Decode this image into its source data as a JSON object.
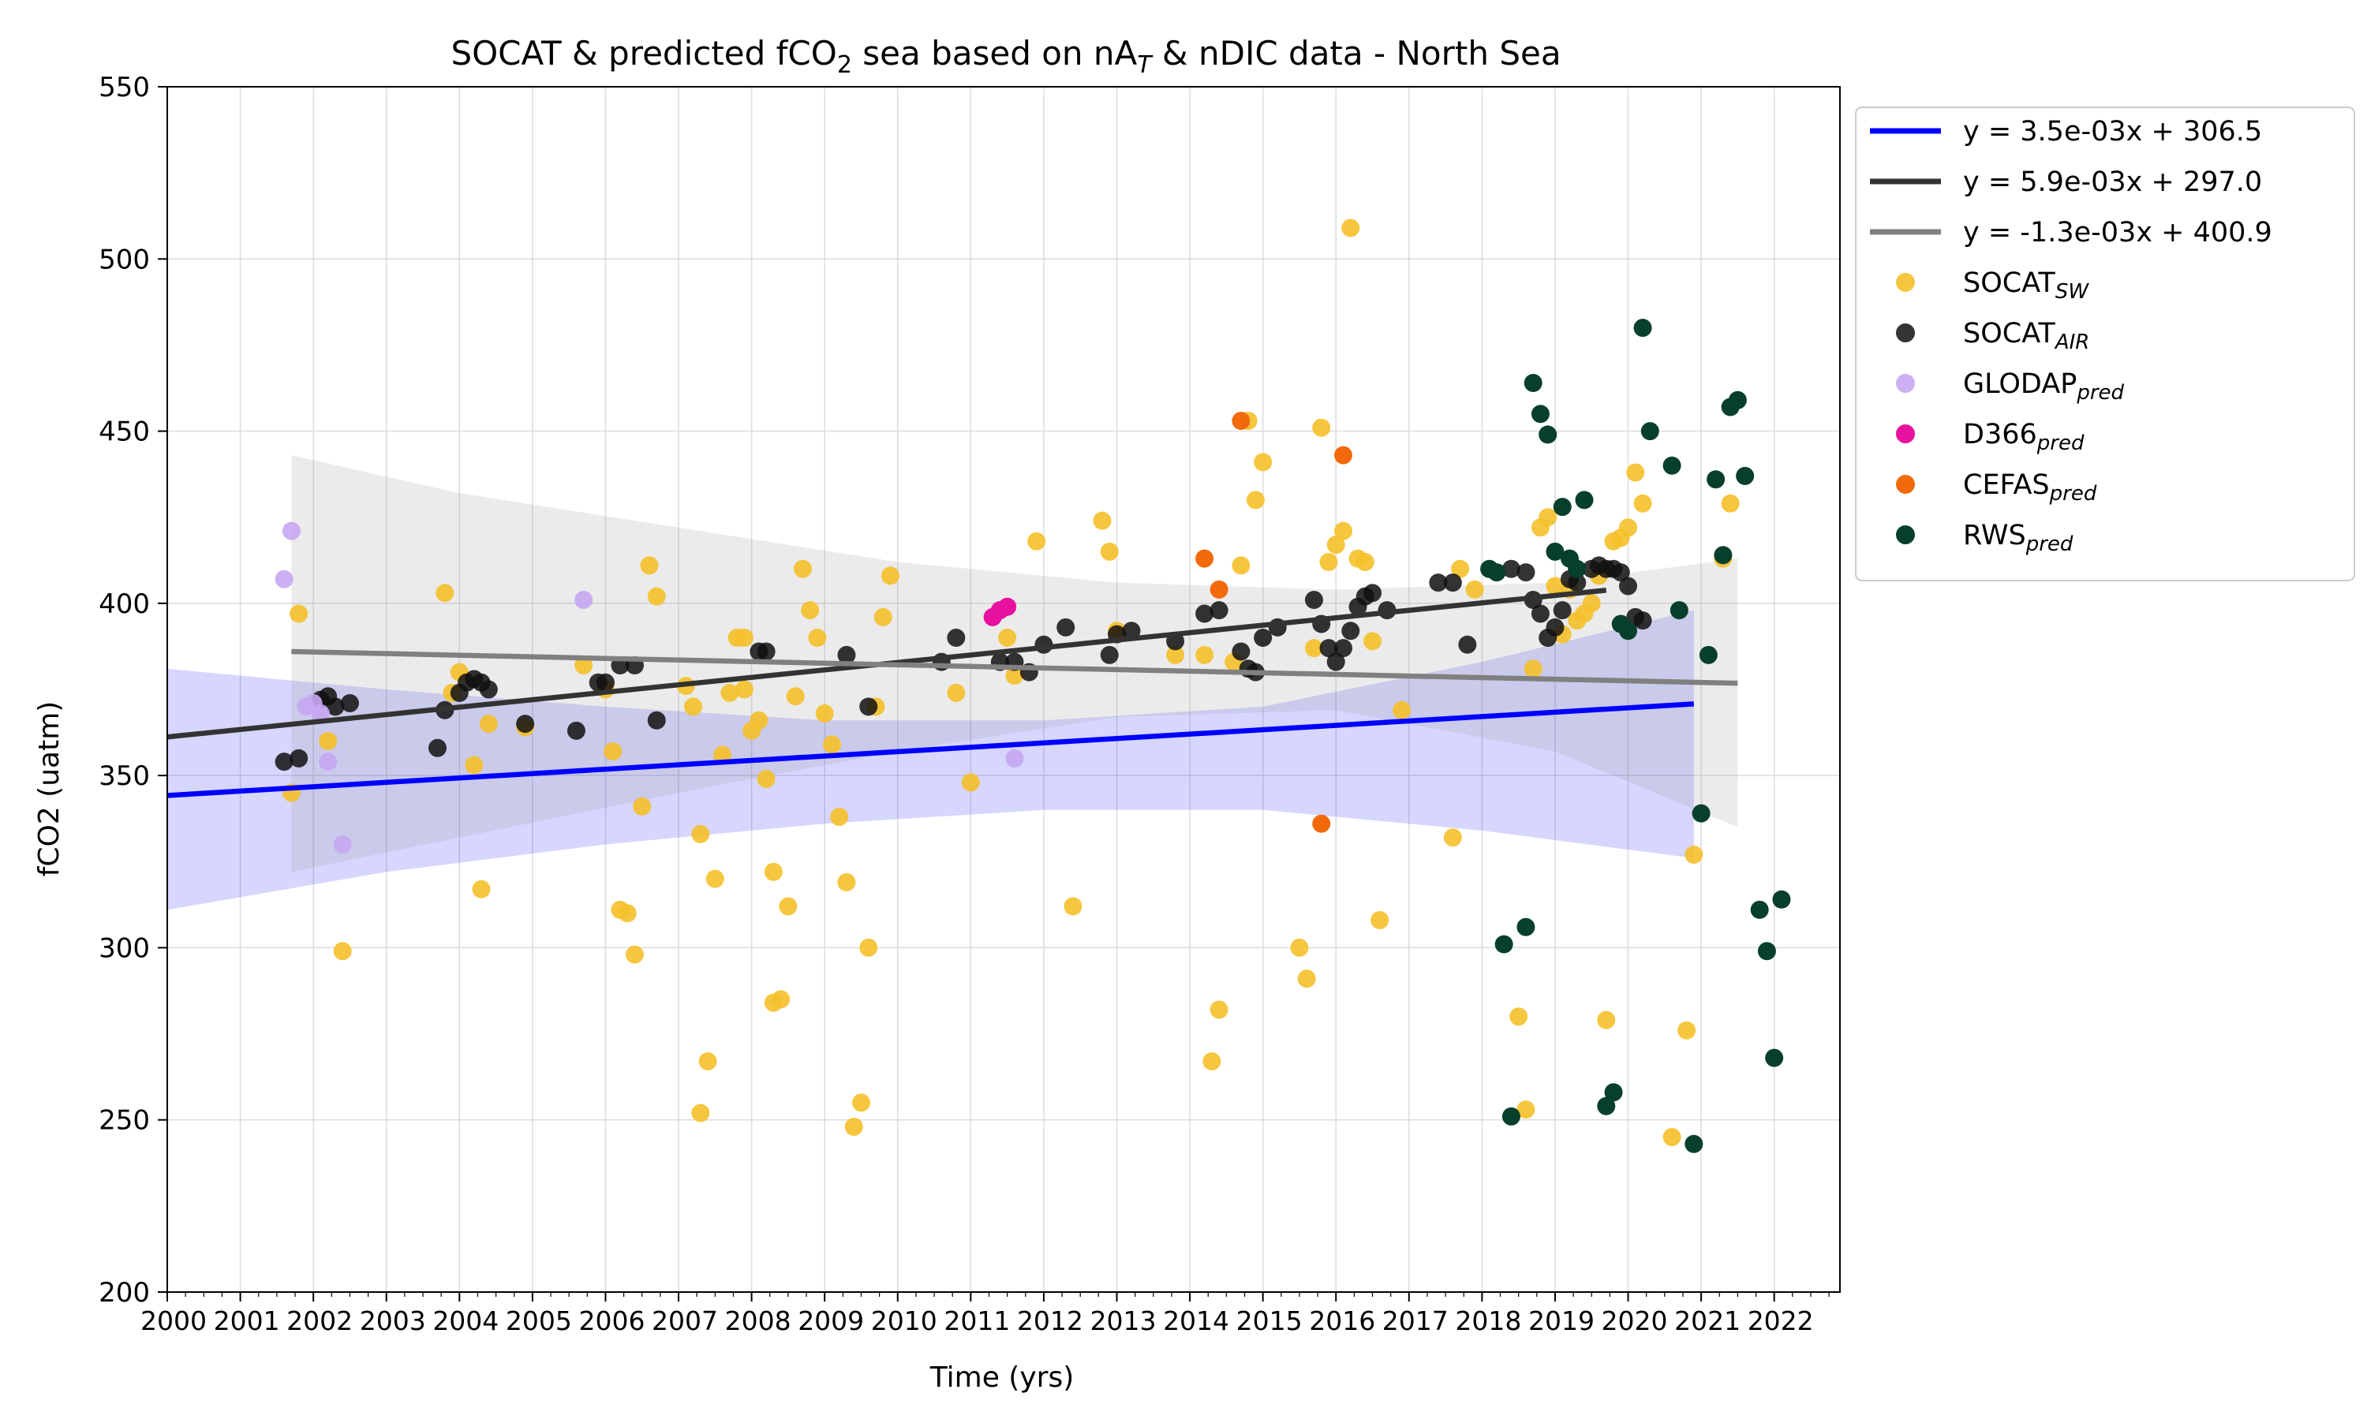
{
  "chart_data": {
    "type": "scatter",
    "title": {
      "parts": [
        {
          "text": "SOCAT & predicted fCO",
          "style": "normal"
        },
        {
          "text": "2",
          "style": "sub"
        },
        {
          "text": " sea based on nA",
          "style": "normal"
        },
        {
          "text": "T",
          "style": "sub-italic"
        },
        {
          "text": " & nDIC data - North Sea",
          "style": "normal"
        }
      ]
    },
    "xlabel": "Time (yrs)",
    "ylabel": "fCO2 (uatm)",
    "xlim": [
      2000,
      2022.9
    ],
    "ylim": [
      200,
      550
    ],
    "xticks": [
      "2000",
      "2001",
      "2002",
      "2003",
      "2004",
      "2005",
      "2006",
      "2007",
      "2008",
      "2009",
      "2010",
      "2011",
      "2012",
      "2013",
      "2014",
      "2015",
      "2016",
      "2017",
      "2018",
      "2019",
      "2020",
      "2021",
      "2022"
    ],
    "yticks": [
      "200",
      "250",
      "300",
      "350",
      "400",
      "450",
      "500",
      "550"
    ],
    "grid": true,
    "legend_position": "outside-right-top",
    "confidence_bands": [
      {
        "color": "#0000ff",
        "opacity": 0.16,
        "upper": [
          [
            2000,
            381
          ],
          [
            2003,
            375
          ],
          [
            2006,
            370
          ],
          [
            2009,
            366
          ],
          [
            2012,
            366
          ],
          [
            2015,
            370
          ],
          [
            2018,
            383
          ],
          [
            2020.9,
            398
          ]
        ],
        "lower": [
          [
            2000,
            311
          ],
          [
            2003,
            322
          ],
          [
            2006,
            330
          ],
          [
            2009,
            336
          ],
          [
            2012,
            340
          ],
          [
            2015,
            340
          ],
          [
            2018,
            334
          ],
          [
            2020.9,
            326
          ]
        ]
      },
      {
        "color": "#999999",
        "opacity": 0.2,
        "upper": [
          [
            2001.7,
            443
          ],
          [
            2004,
            432
          ],
          [
            2007,
            422
          ],
          [
            2010,
            412
          ],
          [
            2013,
            406
          ],
          [
            2016,
            404
          ],
          [
            2019,
            406
          ],
          [
            2021.5,
            413
          ]
        ],
        "lower": [
          [
            2001.7,
            322
          ],
          [
            2004,
            332
          ],
          [
            2007,
            345
          ],
          [
            2010,
            357
          ],
          [
            2013,
            367
          ],
          [
            2016,
            369
          ],
          [
            2019,
            357
          ],
          [
            2021.5,
            335
          ]
        ]
      }
    ],
    "trend_lines": [
      {
        "label": "y = 3.5e-03x + 306.5",
        "color": "#0000ff",
        "from": [
          2000,
          344.2
        ],
        "to": [
          2020.9,
          370.8
        ]
      },
      {
        "label": "y = 5.9e-03x + 297.0",
        "color": "#333333",
        "from": [
          2000,
          361.2
        ],
        "to": [
          2019.7,
          403.8
        ]
      },
      {
        "label": "y = -1.3e-03x + 400.9",
        "color": "#808080",
        "from": [
          2001.7,
          386.0
        ],
        "to": [
          2021.5,
          376.8
        ]
      }
    ],
    "series": [
      {
        "name": "SOCAT",
        "sub": "SW",
        "color": "#f5c02a",
        "opacity": 0.9,
        "points": [
          [
            2001.7,
            345
          ],
          [
            2001.8,
            397
          ],
          [
            2002.2,
            360
          ],
          [
            2002.4,
            299
          ],
          [
            2003.8,
            403
          ],
          [
            2003.9,
            374
          ],
          [
            2004.0,
            380
          ],
          [
            2004.2,
            353
          ],
          [
            2004.3,
            317
          ],
          [
            2004.4,
            365
          ],
          [
            2004.9,
            364
          ],
          [
            2005.7,
            382
          ],
          [
            2006.0,
            375
          ],
          [
            2006.1,
            357
          ],
          [
            2006.2,
            311
          ],
          [
            2006.3,
            310
          ],
          [
            2006.4,
            298
          ],
          [
            2006.5,
            341
          ],
          [
            2006.6,
            411
          ],
          [
            2006.7,
            402
          ],
          [
            2007.1,
            376
          ],
          [
            2007.2,
            370
          ],
          [
            2007.3,
            333
          ],
          [
            2007.3,
            252
          ],
          [
            2007.4,
            267
          ],
          [
            2007.5,
            320
          ],
          [
            2007.6,
            356
          ],
          [
            2007.7,
            374
          ],
          [
            2007.8,
            390
          ],
          [
            2007.9,
            390
          ],
          [
            2007.9,
            375
          ],
          [
            2008.0,
            363
          ],
          [
            2008.1,
            366
          ],
          [
            2008.2,
            349
          ],
          [
            2008.3,
            322
          ],
          [
            2008.3,
            284
          ],
          [
            2008.4,
            285
          ],
          [
            2008.5,
            312
          ],
          [
            2008.6,
            373
          ],
          [
            2008.7,
            410
          ],
          [
            2008.8,
            398
          ],
          [
            2008.9,
            390
          ],
          [
            2009.0,
            368
          ],
          [
            2009.1,
            359
          ],
          [
            2009.2,
            338
          ],
          [
            2009.3,
            319
          ],
          [
            2009.4,
            248
          ],
          [
            2009.5,
            255
          ],
          [
            2009.6,
            300
          ],
          [
            2009.7,
            370
          ],
          [
            2009.8,
            396
          ],
          [
            2009.9,
            408
          ],
          [
            2010.8,
            374
          ],
          [
            2011.0,
            348
          ],
          [
            2011.5,
            390
          ],
          [
            2011.6,
            379
          ],
          [
            2011.9,
            418
          ],
          [
            2012.4,
            312
          ],
          [
            2012.8,
            424
          ],
          [
            2012.9,
            415
          ],
          [
            2013.0,
            392
          ],
          [
            2013.8,
            385
          ],
          [
            2014.2,
            385
          ],
          [
            2014.3,
            267
          ],
          [
            2014.4,
            282
          ],
          [
            2014.6,
            383
          ],
          [
            2014.7,
            411
          ],
          [
            2014.8,
            453
          ],
          [
            2014.9,
            430
          ],
          [
            2015.0,
            441
          ],
          [
            2015.5,
            300
          ],
          [
            2015.6,
            291
          ],
          [
            2015.7,
            387
          ],
          [
            2015.8,
            451
          ],
          [
            2015.9,
            412
          ],
          [
            2016.0,
            417
          ],
          [
            2016.1,
            421
          ],
          [
            2016.2,
            509
          ],
          [
            2016.3,
            413
          ],
          [
            2016.4,
            412
          ],
          [
            2016.5,
            389
          ],
          [
            2016.6,
            308
          ],
          [
            2016.9,
            369
          ],
          [
            2017.6,
            332
          ],
          [
            2017.7,
            410
          ],
          [
            2017.9,
            404
          ],
          [
            2018.5,
            280
          ],
          [
            2018.6,
            253
          ],
          [
            2018.7,
            381
          ],
          [
            2018.8,
            422
          ],
          [
            2018.9,
            425
          ],
          [
            2019.0,
            405
          ],
          [
            2019.1,
            391
          ],
          [
            2019.2,
            404
          ],
          [
            2019.3,
            395
          ],
          [
            2019.4,
            397
          ],
          [
            2019.5,
            400
          ],
          [
            2019.6,
            408
          ],
          [
            2019.7,
            279
          ],
          [
            2019.8,
            418
          ],
          [
            2019.9,
            419
          ],
          [
            2020.0,
            422
          ],
          [
            2020.1,
            438
          ],
          [
            2020.2,
            429
          ],
          [
            2020.6,
            245
          ],
          [
            2020.8,
            276
          ],
          [
            2020.9,
            327
          ],
          [
            2021.3,
            413
          ],
          [
            2021.4,
            429
          ]
        ]
      },
      {
        "name": "SOCAT",
        "sub": "AIR",
        "color": "#111111",
        "opacity": 0.85,
        "points": [
          [
            2001.6,
            354
          ],
          [
            2001.8,
            355
          ],
          [
            2002.1,
            372
          ],
          [
            2002.2,
            373
          ],
          [
            2002.3,
            370
          ],
          [
            2002.5,
            371
          ],
          [
            2003.7,
            358
          ],
          [
            2003.8,
            369
          ],
          [
            2004.0,
            374
          ],
          [
            2004.1,
            377
          ],
          [
            2004.2,
            378
          ],
          [
            2004.3,
            377
          ],
          [
            2004.4,
            375
          ],
          [
            2004.9,
            365
          ],
          [
            2005.6,
            363
          ],
          [
            2005.9,
            377
          ],
          [
            2006.0,
            377
          ],
          [
            2006.2,
            382
          ],
          [
            2006.4,
            382
          ],
          [
            2006.7,
            366
          ],
          [
            2008.1,
            386
          ],
          [
            2008.2,
            386
          ],
          [
            2009.3,
            385
          ],
          [
            2009.6,
            370
          ],
          [
            2010.6,
            383
          ],
          [
            2010.8,
            390
          ],
          [
            2011.4,
            383
          ],
          [
            2011.6,
            383
          ],
          [
            2011.8,
            380
          ],
          [
            2012.0,
            388
          ],
          [
            2012.3,
            393
          ],
          [
            2012.9,
            385
          ],
          [
            2013.0,
            391
          ],
          [
            2013.2,
            392
          ],
          [
            2013.8,
            389
          ],
          [
            2014.2,
            397
          ],
          [
            2014.4,
            398
          ],
          [
            2014.7,
            386
          ],
          [
            2014.8,
            381
          ],
          [
            2014.9,
            380
          ],
          [
            2015.0,
            390
          ],
          [
            2015.2,
            393
          ],
          [
            2015.7,
            401
          ],
          [
            2015.8,
            394
          ],
          [
            2015.9,
            387
          ],
          [
            2016.0,
            383
          ],
          [
            2016.1,
            387
          ],
          [
            2016.2,
            392
          ],
          [
            2016.3,
            399
          ],
          [
            2016.4,
            402
          ],
          [
            2016.5,
            403
          ],
          [
            2016.7,
            398
          ],
          [
            2017.4,
            406
          ],
          [
            2017.6,
            406
          ],
          [
            2017.8,
            388
          ],
          [
            2018.4,
            410
          ],
          [
            2018.6,
            409
          ],
          [
            2018.7,
            401
          ],
          [
            2018.8,
            397
          ],
          [
            2018.9,
            390
          ],
          [
            2019.0,
            393
          ],
          [
            2019.1,
            398
          ],
          [
            2019.2,
            407
          ],
          [
            2019.3,
            406
          ],
          [
            2019.5,
            410
          ],
          [
            2019.6,
            411
          ],
          [
            2019.7,
            410
          ],
          [
            2019.8,
            410
          ],
          [
            2019.9,
            409
          ],
          [
            2020.0,
            405
          ],
          [
            2020.1,
            396
          ],
          [
            2020.2,
            395
          ]
        ]
      },
      {
        "name": "GLODAP",
        "sub": "pred",
        "color": "#c7a7f2",
        "opacity": 0.9,
        "points": [
          [
            2001.6,
            407
          ],
          [
            2001.7,
            421
          ],
          [
            2001.9,
            370
          ],
          [
            2002.0,
            371
          ],
          [
            2002.1,
            368
          ],
          [
            2002.2,
            354
          ],
          [
            2002.4,
            330
          ],
          [
            2005.7,
            401
          ],
          [
            2011.6,
            355
          ]
        ]
      },
      {
        "name": "D366",
        "sub": "pred",
        "color": "#e8109f",
        "opacity": 1,
        "points": [
          [
            2011.3,
            396
          ],
          [
            2011.4,
            398
          ],
          [
            2011.5,
            399
          ]
        ]
      },
      {
        "name": "CEFAS",
        "sub": "pred",
        "color": "#f26a0c",
        "opacity": 1,
        "points": [
          [
            2014.2,
            413
          ],
          [
            2014.4,
            404
          ],
          [
            2014.7,
            453
          ],
          [
            2015.8,
            336
          ],
          [
            2016.1,
            443
          ]
        ]
      },
      {
        "name": "RWS",
        "sub": "pred",
        "color": "#07402a",
        "opacity": 1,
        "points": [
          [
            2018.1,
            410
          ],
          [
            2018.2,
            409
          ],
          [
            2018.3,
            301
          ],
          [
            2018.4,
            251
          ],
          [
            2018.6,
            306
          ],
          [
            2018.7,
            464
          ],
          [
            2018.8,
            455
          ],
          [
            2018.9,
            449
          ],
          [
            2019.0,
            415
          ],
          [
            2019.1,
            428
          ],
          [
            2019.2,
            413
          ],
          [
            2019.3,
            410
          ],
          [
            2019.4,
            430
          ],
          [
            2019.7,
            254
          ],
          [
            2019.8,
            258
          ],
          [
            2019.9,
            394
          ],
          [
            2020.0,
            392
          ],
          [
            2020.2,
            480
          ],
          [
            2020.3,
            450
          ],
          [
            2020.6,
            440
          ],
          [
            2020.7,
            398
          ],
          [
            2020.9,
            243
          ],
          [
            2021.0,
            339
          ],
          [
            2021.1,
            385
          ],
          [
            2021.2,
            436
          ],
          [
            2021.3,
            414
          ],
          [
            2021.4,
            457
          ],
          [
            2021.5,
            459
          ],
          [
            2021.6,
            437
          ],
          [
            2021.8,
            311
          ],
          [
            2021.9,
            299
          ],
          [
            2022.0,
            268
          ],
          [
            2022.1,
            314
          ]
        ]
      }
    ]
  }
}
